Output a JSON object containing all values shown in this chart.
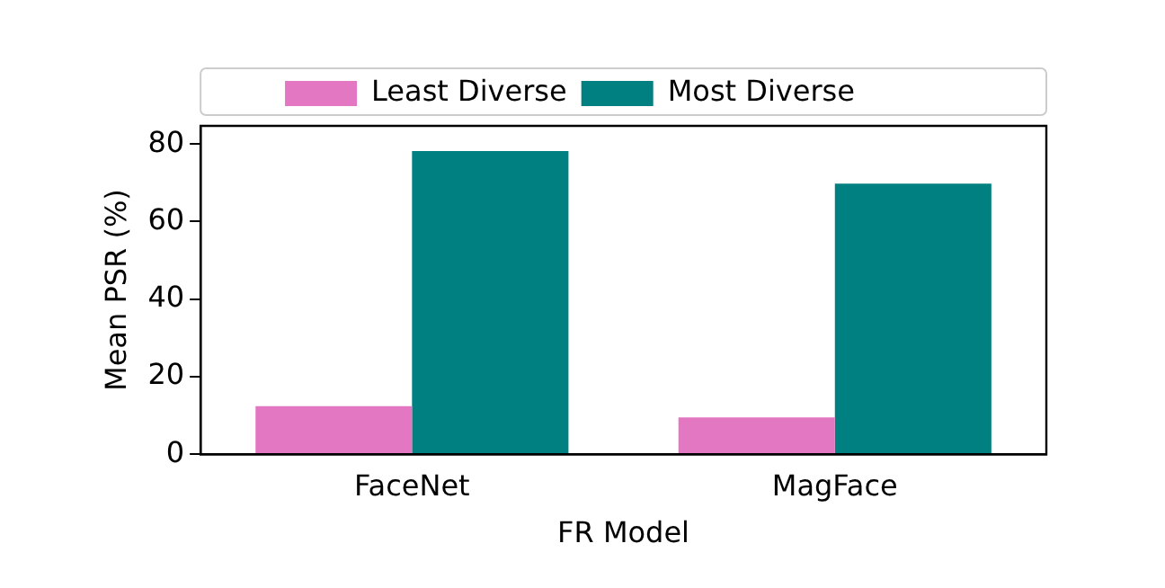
{
  "chart_data": {
    "type": "bar",
    "xlabel": "FR Model",
    "ylabel": "Mean PSR (%)",
    "categories": [
      "FaceNet",
      "MagFace"
    ],
    "series": [
      {
        "name": "Least Diverse",
        "color": "#e377c2",
        "values": [
          12.4,
          9.5
        ]
      },
      {
        "name": "Most Diverse",
        "color": "#008080",
        "values": [
          78.2,
          69.8
        ]
      }
    ],
    "ylim": [
      0,
      84.7
    ],
    "yticks": [
      0,
      20,
      40,
      60,
      80
    ],
    "grid": false,
    "legend": "top"
  }
}
